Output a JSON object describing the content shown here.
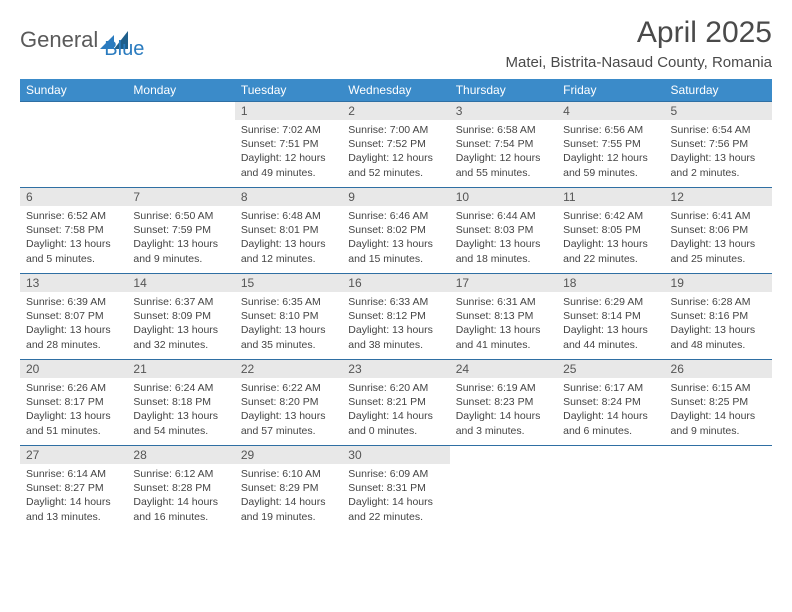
{
  "brand": {
    "part1": "General",
    "part2": "Blue"
  },
  "title": "April 2025",
  "location": "Matei, Bistrita-Nasaud County, Romania",
  "weekdays": [
    "Sunday",
    "Monday",
    "Tuesday",
    "Wednesday",
    "Thursday",
    "Friday",
    "Saturday"
  ],
  "colors": {
    "header_bg": "#3b8bc9",
    "header_fg": "#ffffff",
    "daynum_bg": "#e8e8e8",
    "rule": "#2f6fa3",
    "text": "#444444"
  },
  "weeks": [
    [
      {
        "n": "",
        "sunrise": "",
        "sunset": "",
        "daylight": ""
      },
      {
        "n": "",
        "sunrise": "",
        "sunset": "",
        "daylight": ""
      },
      {
        "n": "1",
        "sunrise": "Sunrise: 7:02 AM",
        "sunset": "Sunset: 7:51 PM",
        "daylight": "Daylight: 12 hours and 49 minutes."
      },
      {
        "n": "2",
        "sunrise": "Sunrise: 7:00 AM",
        "sunset": "Sunset: 7:52 PM",
        "daylight": "Daylight: 12 hours and 52 minutes."
      },
      {
        "n": "3",
        "sunrise": "Sunrise: 6:58 AM",
        "sunset": "Sunset: 7:54 PM",
        "daylight": "Daylight: 12 hours and 55 minutes."
      },
      {
        "n": "4",
        "sunrise": "Sunrise: 6:56 AM",
        "sunset": "Sunset: 7:55 PM",
        "daylight": "Daylight: 12 hours and 59 minutes."
      },
      {
        "n": "5",
        "sunrise": "Sunrise: 6:54 AM",
        "sunset": "Sunset: 7:56 PM",
        "daylight": "Daylight: 13 hours and 2 minutes."
      }
    ],
    [
      {
        "n": "6",
        "sunrise": "Sunrise: 6:52 AM",
        "sunset": "Sunset: 7:58 PM",
        "daylight": "Daylight: 13 hours and 5 minutes."
      },
      {
        "n": "7",
        "sunrise": "Sunrise: 6:50 AM",
        "sunset": "Sunset: 7:59 PM",
        "daylight": "Daylight: 13 hours and 9 minutes."
      },
      {
        "n": "8",
        "sunrise": "Sunrise: 6:48 AM",
        "sunset": "Sunset: 8:01 PM",
        "daylight": "Daylight: 13 hours and 12 minutes."
      },
      {
        "n": "9",
        "sunrise": "Sunrise: 6:46 AM",
        "sunset": "Sunset: 8:02 PM",
        "daylight": "Daylight: 13 hours and 15 minutes."
      },
      {
        "n": "10",
        "sunrise": "Sunrise: 6:44 AM",
        "sunset": "Sunset: 8:03 PM",
        "daylight": "Daylight: 13 hours and 18 minutes."
      },
      {
        "n": "11",
        "sunrise": "Sunrise: 6:42 AM",
        "sunset": "Sunset: 8:05 PM",
        "daylight": "Daylight: 13 hours and 22 minutes."
      },
      {
        "n": "12",
        "sunrise": "Sunrise: 6:41 AM",
        "sunset": "Sunset: 8:06 PM",
        "daylight": "Daylight: 13 hours and 25 minutes."
      }
    ],
    [
      {
        "n": "13",
        "sunrise": "Sunrise: 6:39 AM",
        "sunset": "Sunset: 8:07 PM",
        "daylight": "Daylight: 13 hours and 28 minutes."
      },
      {
        "n": "14",
        "sunrise": "Sunrise: 6:37 AM",
        "sunset": "Sunset: 8:09 PM",
        "daylight": "Daylight: 13 hours and 32 minutes."
      },
      {
        "n": "15",
        "sunrise": "Sunrise: 6:35 AM",
        "sunset": "Sunset: 8:10 PM",
        "daylight": "Daylight: 13 hours and 35 minutes."
      },
      {
        "n": "16",
        "sunrise": "Sunrise: 6:33 AM",
        "sunset": "Sunset: 8:12 PM",
        "daylight": "Daylight: 13 hours and 38 minutes."
      },
      {
        "n": "17",
        "sunrise": "Sunrise: 6:31 AM",
        "sunset": "Sunset: 8:13 PM",
        "daylight": "Daylight: 13 hours and 41 minutes."
      },
      {
        "n": "18",
        "sunrise": "Sunrise: 6:29 AM",
        "sunset": "Sunset: 8:14 PM",
        "daylight": "Daylight: 13 hours and 44 minutes."
      },
      {
        "n": "19",
        "sunrise": "Sunrise: 6:28 AM",
        "sunset": "Sunset: 8:16 PM",
        "daylight": "Daylight: 13 hours and 48 minutes."
      }
    ],
    [
      {
        "n": "20",
        "sunrise": "Sunrise: 6:26 AM",
        "sunset": "Sunset: 8:17 PM",
        "daylight": "Daylight: 13 hours and 51 minutes."
      },
      {
        "n": "21",
        "sunrise": "Sunrise: 6:24 AM",
        "sunset": "Sunset: 8:18 PM",
        "daylight": "Daylight: 13 hours and 54 minutes."
      },
      {
        "n": "22",
        "sunrise": "Sunrise: 6:22 AM",
        "sunset": "Sunset: 8:20 PM",
        "daylight": "Daylight: 13 hours and 57 minutes."
      },
      {
        "n": "23",
        "sunrise": "Sunrise: 6:20 AM",
        "sunset": "Sunset: 8:21 PM",
        "daylight": "Daylight: 14 hours and 0 minutes."
      },
      {
        "n": "24",
        "sunrise": "Sunrise: 6:19 AM",
        "sunset": "Sunset: 8:23 PM",
        "daylight": "Daylight: 14 hours and 3 minutes."
      },
      {
        "n": "25",
        "sunrise": "Sunrise: 6:17 AM",
        "sunset": "Sunset: 8:24 PM",
        "daylight": "Daylight: 14 hours and 6 minutes."
      },
      {
        "n": "26",
        "sunrise": "Sunrise: 6:15 AM",
        "sunset": "Sunset: 8:25 PM",
        "daylight": "Daylight: 14 hours and 9 minutes."
      }
    ],
    [
      {
        "n": "27",
        "sunrise": "Sunrise: 6:14 AM",
        "sunset": "Sunset: 8:27 PM",
        "daylight": "Daylight: 14 hours and 13 minutes."
      },
      {
        "n": "28",
        "sunrise": "Sunrise: 6:12 AM",
        "sunset": "Sunset: 8:28 PM",
        "daylight": "Daylight: 14 hours and 16 minutes."
      },
      {
        "n": "29",
        "sunrise": "Sunrise: 6:10 AM",
        "sunset": "Sunset: 8:29 PM",
        "daylight": "Daylight: 14 hours and 19 minutes."
      },
      {
        "n": "30",
        "sunrise": "Sunrise: 6:09 AM",
        "sunset": "Sunset: 8:31 PM",
        "daylight": "Daylight: 14 hours and 22 minutes."
      },
      {
        "n": "",
        "sunrise": "",
        "sunset": "",
        "daylight": ""
      },
      {
        "n": "",
        "sunrise": "",
        "sunset": "",
        "daylight": ""
      },
      {
        "n": "",
        "sunrise": "",
        "sunset": "",
        "daylight": ""
      }
    ]
  ]
}
